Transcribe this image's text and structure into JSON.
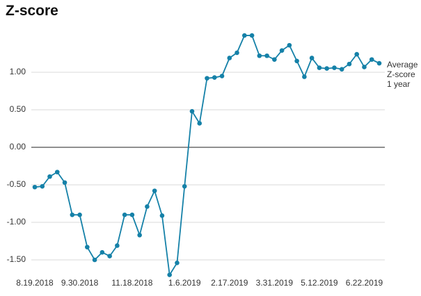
{
  "chart_data": {
    "type": "line",
    "title": "Z-score",
    "categories": [
      "8.19.2018",
      null,
      null,
      null,
      null,
      null,
      "9.30.2018",
      null,
      null,
      null,
      null,
      null,
      null,
      "11.18.2018",
      null,
      null,
      null,
      null,
      null,
      null,
      "1.6.2019",
      null,
      null,
      null,
      null,
      null,
      "2.17.2019",
      null,
      null,
      null,
      null,
      null,
      "3.31.2019",
      null,
      null,
      null,
      null,
      null,
      "5.12.2019",
      null,
      null,
      null,
      null,
      null,
      "6.22.2019",
      null,
      null
    ],
    "series": [
      {
        "name": "Average Z-score 1 year",
        "color": "#1581a8",
        "values": [
          -0.53,
          -0.52,
          -0.39,
          -0.33,
          -0.47,
          -0.9,
          -0.9,
          -1.33,
          -1.5,
          -1.4,
          -1.45,
          -1.31,
          -0.9,
          -0.9,
          -1.17,
          -0.79,
          -0.58,
          -0.91,
          -1.7,
          -1.54,
          -0.52,
          0.48,
          0.32,
          0.92,
          0.93,
          0.95,
          1.19,
          1.26,
          1.49,
          1.49,
          1.22,
          1.22,
          1.17,
          1.29,
          1.36,
          1.15,
          0.94,
          1.19,
          1.06,
          1.05,
          1.06,
          1.04,
          1.11,
          1.24,
          1.07,
          1.17,
          1.12
        ]
      }
    ],
    "ylim": [
      -1.75,
      1.5
    ],
    "yticks": [
      {
        "value": -1.5,
        "label": "-1.50"
      },
      {
        "value": -1,
        "label": "-1.00"
      },
      {
        "value": -0.5,
        "label": "-0.50"
      },
      {
        "value": 0,
        "label": "0.00"
      },
      {
        "value": 0.5,
        "label": "0.50"
      },
      {
        "value": 1,
        "label": "1.00"
      }
    ],
    "grid": true
  }
}
